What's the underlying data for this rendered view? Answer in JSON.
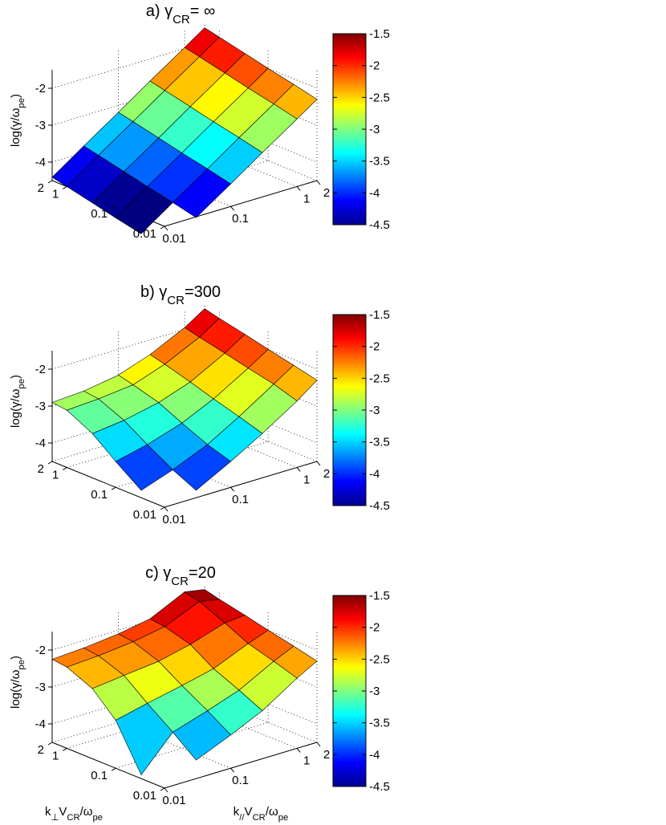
{
  "chart_data": [
    {
      "type": "surface",
      "title": [
        "a) γ",
        "CR",
        "= ∞"
      ],
      "zlabel": [
        "log(γ/ω",
        "pe",
        ")"
      ],
      "x": [
        0.01,
        0.03,
        0.1,
        0.3,
        1,
        2
      ],
      "y": [
        0.01,
        0.03,
        0.1,
        0.3,
        1,
        2
      ],
      "z": [
        [
          null,
          -4.52,
          -3.89,
          -3.3,
          -2.67,
          -2.3
        ],
        [
          -4.96,
          -4.37,
          -3.74,
          -3.15,
          -2.52,
          -2.15
        ],
        [
          -4.81,
          -4.22,
          -3.59,
          -3.0,
          -2.37,
          -2.0
        ],
        [
          -4.66,
          -4.07,
          -3.44,
          -2.85,
          -2.22,
          -1.85
        ],
        [
          -4.5,
          -3.91,
          -3.28,
          -2.69,
          -2.06,
          -1.69
        ],
        [
          -4.41,
          -3.82,
          -3.19,
          -2.6,
          -1.97,
          -1.6
        ]
      ],
      "xlim": [
        0.01,
        2
      ],
      "xticks": [
        0.01,
        0.1,
        1,
        2
      ],
      "ylim": [
        0.01,
        2
      ],
      "yticks": [
        2,
        1,
        0.1,
        0.01
      ],
      "zlim": [
        -4.5,
        -1.5
      ],
      "zticks": [
        -4,
        -3,
        -2
      ],
      "xscale": "log",
      "yscale": "log",
      "grid": true,
      "colormap": "jet",
      "clim": [
        -4.5,
        -1.5
      ],
      "cticks": [
        -1.5,
        -2,
        -2.5,
        -3,
        -3.5,
        -4,
        -4.5
      ]
    },
    {
      "type": "surface",
      "title": [
        "b) γ",
        "CR",
        "=300"
      ],
      "zlabel": [
        "log(γ/ω",
        "pe",
        ")"
      ],
      "x": [
        0.01,
        0.03,
        0.1,
        0.3,
        1,
        2
      ],
      "y": [
        0.01,
        0.03,
        0.1,
        0.3,
        1,
        2
      ],
      "z": [
        [
          null,
          -4.3,
          -3.8,
          -3.3,
          -2.7,
          -2.3
        ],
        [
          -4.3,
          -4.0,
          -3.6,
          -3.1,
          -2.5,
          -2.15
        ],
        [
          -3.8,
          -3.6,
          -3.3,
          -2.9,
          -2.35,
          -2.0
        ],
        [
          -3.3,
          -3.2,
          -3.0,
          -2.7,
          -2.2,
          -1.85
        ],
        [
          -2.95,
          -2.9,
          -2.8,
          -2.5,
          -2.05,
          -1.7
        ],
        [
          -2.9,
          -2.85,
          -2.7,
          -2.4,
          -1.95,
          -1.6
        ]
      ],
      "xlim": [
        0.01,
        2
      ],
      "xticks": [
        0.01,
        0.1,
        1,
        2
      ],
      "ylim": [
        0.01,
        2
      ],
      "yticks": [
        2,
        1,
        0.1,
        0.01
      ],
      "zlim": [
        -4.5,
        -1.5
      ],
      "zticks": [
        -4,
        -3,
        -2
      ],
      "xscale": "log",
      "yscale": "log",
      "grid": true,
      "colormap": "jet",
      "clim": [
        -4.5,
        -1.5
      ],
      "cticks": [
        -1.5,
        -2,
        -2.5,
        -3,
        -3.5,
        -4,
        -4.5
      ]
    },
    {
      "type": "surface",
      "title": [
        "c) γ",
        "CR",
        "=20"
      ],
      "zlabel": [
        "log(γ/ω",
        "pe",
        ")"
      ],
      "xlabel": [
        "k",
        "//",
        "V",
        "CR",
        "/ω",
        "pe"
      ],
      "ylabel": [
        "k",
        "⊥",
        "V",
        "CR",
        "/ω",
        "pe"
      ],
      "x": [
        0.01,
        0.03,
        0.1,
        0.3,
        1,
        2
      ],
      "y": [
        0.01,
        0.03,
        0.1,
        0.3,
        1,
        2
      ],
      "z": [
        [
          null,
          -4.0,
          -3.6,
          -3.2,
          -2.6,
          -2.3
        ],
        [
          -4.4,
          -3.5,
          -3.2,
          -2.9,
          -2.4,
          -2.15
        ],
        [
          -3.2,
          -3.0,
          -2.8,
          -2.6,
          -2.2,
          -2.0
        ],
        [
          -2.6,
          -2.5,
          -2.4,
          -2.2,
          -1.9,
          -1.85
        ],
        [
          -2.3,
          -2.25,
          -2.15,
          -2.0,
          -1.6,
          -1.7
        ],
        [
          -2.25,
          -2.2,
          -2.1,
          -1.95,
          -1.5,
          -1.6
        ]
      ],
      "xlim": [
        0.01,
        2
      ],
      "xticks": [
        0.01,
        0.1,
        1,
        2
      ],
      "ylim": [
        0.01,
        2
      ],
      "yticks": [
        2,
        1,
        0.1,
        0.01
      ],
      "zlim": [
        -4.5,
        -1.5
      ],
      "zticks": [
        -4,
        -3,
        -2
      ],
      "xscale": "log",
      "yscale": "log",
      "grid": true,
      "colormap": "jet",
      "clim": [
        -4.5,
        -1.5
      ],
      "cticks": [
        -1.5,
        -2,
        -2.5,
        -3,
        -3.5,
        -4,
        -4.5
      ]
    }
  ]
}
